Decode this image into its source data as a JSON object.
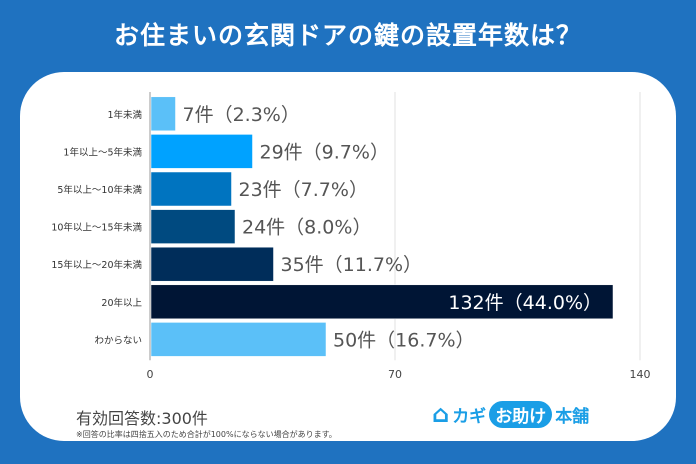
{
  "title": "お住まいの玄関ドアの鍵の設置年数は？",
  "chart_data": {
    "type": "bar",
    "orientation": "horizontal",
    "categories": [
      "1年未満",
      "1年以上～5年未満",
      "5年以上～10年未満",
      "10年以上～15年未満",
      "15年以上～20年未満",
      "20年以上",
      "わからない"
    ],
    "values": [
      7,
      29,
      23,
      24,
      35,
      132,
      50
    ],
    "data_labels": [
      "7件（2.3%）",
      "29件（9.7%）",
      "23件（7.7%）",
      "24件（8.0%）",
      "35件（11.7%）",
      "132件（44.0%）",
      "50件（16.7%）"
    ],
    "colors": [
      "#5bc0f8",
      "#00a2ff",
      "#0074c0",
      "#004a80",
      "#002d5a",
      "#001535",
      "#5bc0f8"
    ],
    "xlim": [
      0,
      140
    ],
    "xticks": [
      "0",
      "70",
      "140"
    ],
    "grid": true
  },
  "footer": {
    "responses": "有効回答数:300件",
    "note": "※回答の比率は四捨五入のため合計が100%にならない場合があります。"
  },
  "logo": {
    "part1": "カギ",
    "part2": "お助け",
    "part3": "本舗"
  }
}
